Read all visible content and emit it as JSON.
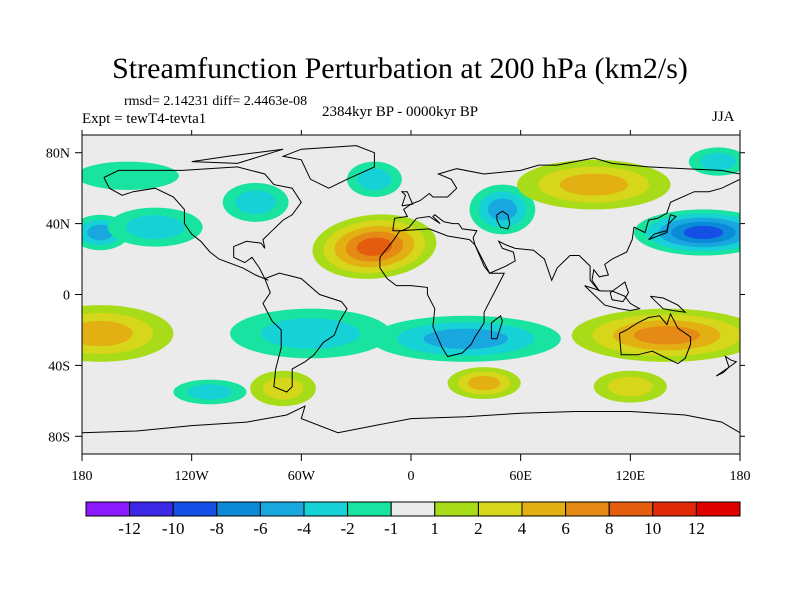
{
  "chart_data": {
    "type": "heatmap",
    "title": "Streamfunction Perturbation at 200 hPa (km2/s)",
    "stats_text": "rmsd= 2.14231 diff= 2.4463e-08",
    "experiment_text": "Expt = tewT4-tevta1",
    "period_text": "2384kyr BP - 0000kyr BP",
    "season": "JJA",
    "xlim": [
      -180,
      180
    ],
    "ylim": [
      -90,
      90
    ],
    "x_ticks": [
      {
        "value": -180,
        "label": "180"
      },
      {
        "value": -120,
        "label": "120W"
      },
      {
        "value": -60,
        "label": "60W"
      },
      {
        "value": 0,
        "label": "0"
      },
      {
        "value": 60,
        "label": "60E"
      },
      {
        "value": 120,
        "label": "120E"
      },
      {
        "value": 180,
        "label": "180"
      }
    ],
    "y_ticks": [
      {
        "value": 80,
        "label": "80N"
      },
      {
        "value": 40,
        "label": "40N"
      },
      {
        "value": 0,
        "label": "0"
      },
      {
        "value": -40,
        "label": "40S"
      },
      {
        "value": -80,
        "label": "80S"
      }
    ],
    "colorbar": {
      "levels": [
        "-12",
        "-10",
        "-8",
        "-6",
        "-4",
        "-2",
        "-1",
        "1",
        "2",
        "4",
        "6",
        "8",
        "10",
        "12"
      ],
      "colors": [
        "#8c1aff",
        "#3d28e6",
        "#1550e6",
        "#0a8ad7",
        "#18a8df",
        "#16d2d6",
        "#19e3a1",
        "#ebebeb",
        "#a8dc18",
        "#d6d61a",
        "#e2b012",
        "#e58a14",
        "#e45d0e",
        "#e02a0a",
        "#e00000"
      ]
    },
    "features": [
      {
        "name": "anomaly-sahara-max",
        "lon": -20,
        "lat": 27,
        "value": 9,
        "rlon": 34,
        "rlat": 18,
        "rot": -5
      },
      {
        "name": "anomaly-n-atlantic-min",
        "lon": -170,
        "lat": 35,
        "value": -5,
        "rlon": 16,
        "rlat": 10,
        "rot": 0
      },
      {
        "name": "anomaly-n-pacific-low",
        "lon": -140,
        "lat": 38,
        "value": -2,
        "rlon": 26,
        "rlat": 11,
        "rot": 0
      },
      {
        "name": "anomaly-na-low",
        "lon": -85,
        "lat": 52,
        "value": -2,
        "rlon": 18,
        "rlat": 11,
        "rot": 0
      },
      {
        "name": "anomaly-arctic-low",
        "lon": -155,
        "lat": 67,
        "value": -1,
        "rlon": 28,
        "rlat": 8,
        "rot": 0
      },
      {
        "name": "anomaly-greenland-low",
        "lon": -20,
        "lat": 65,
        "value": -2,
        "rlon": 15,
        "rlat": 10,
        "rot": 0
      },
      {
        "name": "anomaly-urals-low",
        "lon": 50,
        "lat": 48,
        "value": -4,
        "rlon": 18,
        "rlat": 14,
        "rot": 0
      },
      {
        "name": "anomaly-siberia-high",
        "lon": 100,
        "lat": 62,
        "value": 4,
        "rlon": 42,
        "rlat": 14,
        "rot": 0
      },
      {
        "name": "anomaly-nw-pacific-min",
        "lon": 160,
        "lat": 35,
        "value": -8,
        "rlon": 38,
        "rlat": 13,
        "rot": 0
      },
      {
        "name": "anomaly-arctic-fringe-low",
        "lon": 168,
        "lat": 75,
        "value": -3,
        "rlon": 16,
        "rlat": 8,
        "rot": 0
      },
      {
        "name": "anomaly-south-pacific-high",
        "lon": -170,
        "lat": -22,
        "value": 4,
        "rlon": 40,
        "rlat": 16,
        "rot": 0
      },
      {
        "name": "anomaly-s-america-low",
        "lon": -55,
        "lat": -22,
        "value": -3,
        "rlon": 44,
        "rlat": 14,
        "rot": 0
      },
      {
        "name": "anomaly-s-indian-min",
        "lon": 30,
        "lat": -25,
        "value": -5,
        "rlon": 52,
        "rlat": 13,
        "rot": 0
      },
      {
        "name": "anomaly-australia-high",
        "lon": 140,
        "lat": -23,
        "value": 6,
        "rlon": 52,
        "rlat": 15,
        "rot": 0
      },
      {
        "name": "anomaly-patagonia-high",
        "lon": -70,
        "lat": -53,
        "value": 3,
        "rlon": 18,
        "rlat": 10,
        "rot": 0
      },
      {
        "name": "anomaly-s-pacific-low",
        "lon": -110,
        "lat": -55,
        "value": -2,
        "rlon": 20,
        "rlat": 7,
        "rot": 0
      },
      {
        "name": "anomaly-s-atlantic-high",
        "lon": 40,
        "lat": -50,
        "value": 4,
        "rlon": 20,
        "rlat": 9,
        "rot": 0
      },
      {
        "name": "anomaly-s-indian-high",
        "lon": 120,
        "lat": -52,
        "value": 3,
        "rlon": 20,
        "rlat": 9,
        "rot": 0
      }
    ]
  }
}
